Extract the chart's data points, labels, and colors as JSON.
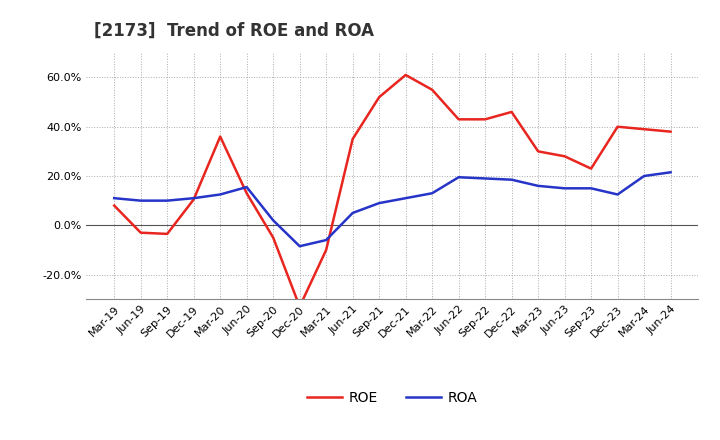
{
  "title": "[2173]  Trend of ROE and ROA",
  "x_labels": [
    "Mar-19",
    "Jun-19",
    "Sep-19",
    "Dec-19",
    "Mar-20",
    "Jun-20",
    "Sep-20",
    "Dec-20",
    "Mar-21",
    "Jun-21",
    "Sep-21",
    "Dec-21",
    "Mar-22",
    "Jun-22",
    "Sep-22",
    "Dec-22",
    "Mar-23",
    "Jun-23",
    "Sep-23",
    "Dec-23",
    "Mar-24",
    "Jun-24"
  ],
  "roe": [
    8.0,
    -3.0,
    -3.5,
    10.5,
    36.0,
    13.0,
    -5.0,
    -33.0,
    -10.0,
    35.0,
    52.0,
    61.0,
    55.0,
    43.0,
    43.0,
    46.0,
    30.0,
    28.0,
    23.0,
    40.0,
    39.0,
    38.0
  ],
  "roa": [
    11.0,
    10.0,
    10.0,
    11.0,
    12.5,
    15.5,
    2.0,
    -8.5,
    -6.0,
    5.0,
    9.0,
    11.0,
    13.0,
    19.5,
    19.0,
    18.5,
    16.0,
    15.0,
    15.0,
    12.5,
    20.0,
    21.5
  ],
  "roe_color": "#e8251f",
  "roa_color": "#2634c8",
  "background_color": "#ffffff",
  "grid_color": "#aaaaaa",
  "ylim": [
    -30,
    70
  ],
  "yticks": [
    -20.0,
    0.0,
    20.0,
    40.0,
    60.0
  ],
  "legend_labels": [
    "ROE",
    "ROA"
  ],
  "line_width": 1.8,
  "title_fontsize": 12,
  "tick_fontsize": 8
}
